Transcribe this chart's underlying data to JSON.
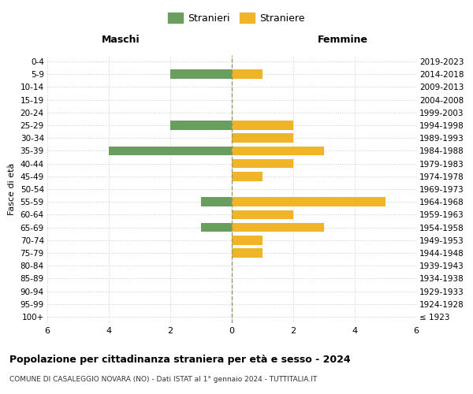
{
  "age_groups": [
    "100+",
    "95-99",
    "90-94",
    "85-89",
    "80-84",
    "75-79",
    "70-74",
    "65-69",
    "60-64",
    "55-59",
    "50-54",
    "45-49",
    "40-44",
    "35-39",
    "30-34",
    "25-29",
    "20-24",
    "15-19",
    "10-14",
    "5-9",
    "0-4"
  ],
  "birth_years": [
    "≤ 1923",
    "1924-1928",
    "1929-1933",
    "1934-1938",
    "1939-1943",
    "1944-1948",
    "1949-1953",
    "1954-1958",
    "1959-1963",
    "1964-1968",
    "1969-1973",
    "1974-1978",
    "1979-1983",
    "1984-1988",
    "1989-1993",
    "1994-1998",
    "1999-2003",
    "2004-2008",
    "2009-2013",
    "2014-2018",
    "2019-2023"
  ],
  "males": [
    0,
    0,
    0,
    0,
    0,
    0,
    0,
    1,
    0,
    1,
    0,
    0,
    0,
    4,
    0,
    2,
    0,
    0,
    0,
    2,
    0
  ],
  "females": [
    0,
    0,
    0,
    0,
    0,
    1,
    1,
    3,
    2,
    5,
    0,
    1,
    2,
    3,
    2,
    2,
    0,
    0,
    0,
    1,
    0
  ],
  "male_color": "#6a9e5e",
  "female_color": "#f0b429",
  "title": "Popolazione per cittadinanza straniera per età e sesso - 2024",
  "subtitle": "COMUNE DI CASALEGGIO NOVARA (NO) - Dati ISTAT al 1° gennaio 2024 - TUTTITALIA.IT",
  "legend_male": "Stranieri",
  "legend_female": "Straniere",
  "label_left": "Maschi",
  "label_right": "Femmine",
  "ylabel_left": "Fasce di età",
  "xlim": 6,
  "background_color": "#ffffff",
  "grid_color": "#cccccc",
  "vline_color": "#999966"
}
